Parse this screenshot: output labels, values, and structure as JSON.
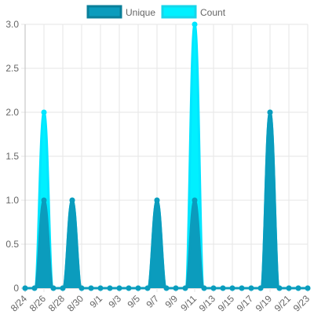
{
  "chart_data": {
    "type": "area",
    "x": [
      "8/24",
      "8/25",
      "8/26",
      "8/27",
      "8/28",
      "8/29",
      "8/30",
      "8/31",
      "9/1",
      "9/2",
      "9/3",
      "9/4",
      "9/5",
      "9/6",
      "9/7",
      "9/8",
      "9/9",
      "9/10",
      "9/11",
      "9/12",
      "9/13",
      "9/14",
      "9/15",
      "9/16",
      "9/17",
      "9/18",
      "9/19",
      "9/20",
      "9/21",
      "9/22",
      "9/23"
    ],
    "tick_labels": [
      "8/24",
      "8/26",
      "8/28",
      "8/30",
      "9/1",
      "9/3",
      "9/5",
      "9/7",
      "9/9",
      "9/11",
      "9/13",
      "9/15",
      "9/17",
      "9/19",
      "9/21",
      "9/23"
    ],
    "series": [
      {
        "name": "Unique",
        "color": "#0b9cbd",
        "fill": "#0b9cbd",
        "values": [
          0,
          0,
          1,
          0,
          0,
          1,
          0,
          0,
          0,
          0,
          0,
          0,
          0,
          0,
          1,
          0,
          0,
          0,
          1,
          0,
          0,
          0,
          0,
          0,
          0,
          0,
          2,
          0,
          0,
          0,
          0
        ]
      },
      {
        "name": "Count",
        "color": "#00e5ff",
        "fill": "#00f0ff",
        "values": [
          0,
          0,
          2,
          0,
          0,
          1,
          0,
          0,
          0,
          0,
          0,
          0,
          0,
          0,
          1,
          0,
          0,
          0,
          3,
          0,
          0,
          0,
          0,
          0,
          0,
          0,
          2,
          0,
          0,
          0,
          0
        ]
      }
    ],
    "y_ticks": [
      "0",
      "0.5",
      "1.0",
      "1.5",
      "2.0",
      "2.5",
      "3.0"
    ],
    "ylim": [
      0,
      3
    ],
    "grid": true,
    "legend": "top-center"
  }
}
